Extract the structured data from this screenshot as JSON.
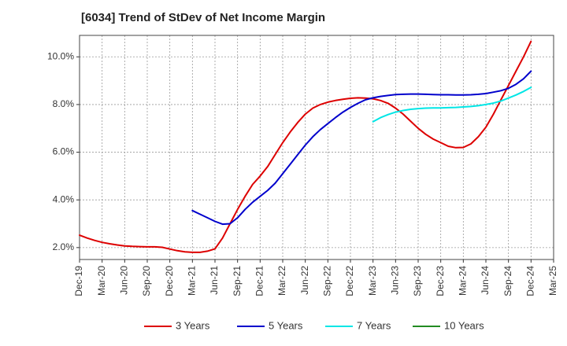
{
  "title": "[6034]  Trend of StDev of Net Income Margin",
  "chart_data": {
    "type": "line",
    "title": "[6034]  Trend of StDev of Net Income Margin",
    "xlabel": "",
    "ylabel": "",
    "x_ticks": [
      "Dec-19",
      "Mar-20",
      "Jun-20",
      "Sep-20",
      "Dec-20",
      "Mar-21",
      "Jun-21",
      "Sep-21",
      "Dec-21",
      "Mar-22",
      "Jun-22",
      "Sep-22",
      "Dec-22",
      "Mar-23",
      "Jun-23",
      "Sep-23",
      "Dec-23",
      "Mar-24",
      "Jun-24",
      "Sep-24",
      "Dec-24",
      "Mar-25"
    ],
    "y_ticks": [
      "2.0%",
      "4.0%",
      "6.0%",
      "8.0%",
      "10.0%"
    ],
    "ylim": [
      1.5,
      10.9
    ],
    "grid": true,
    "legend_position": "bottom",
    "series": [
      {
        "name": "3 Years",
        "color": "#dd0000",
        "x": [
          "Dec-19",
          "Jan-20",
          "Feb-20",
          "Mar-20",
          "Apr-20",
          "May-20",
          "Jun-20",
          "Jul-20",
          "Aug-20",
          "Sep-20",
          "Oct-20",
          "Nov-20",
          "Dec-20",
          "Jan-21",
          "Feb-21",
          "Mar-21",
          "Apr-21",
          "May-21",
          "Jun-21",
          "Jul-21",
          "Aug-21",
          "Sep-21",
          "Oct-21",
          "Nov-21",
          "Dec-21",
          "Jan-22",
          "Feb-22",
          "Mar-22",
          "Apr-22",
          "May-22",
          "Jun-22",
          "Jul-22",
          "Aug-22",
          "Sep-22",
          "Oct-22",
          "Nov-22",
          "Dec-22",
          "Jan-23",
          "Feb-23",
          "Mar-23",
          "Apr-23",
          "May-23",
          "Jun-23",
          "Jul-23",
          "Aug-23",
          "Sep-23",
          "Oct-23",
          "Nov-23",
          "Dec-23",
          "Jan-24",
          "Feb-24",
          "Mar-24",
          "Apr-24",
          "May-24",
          "Jun-24",
          "Jul-24",
          "Aug-24",
          "Sep-24",
          "Oct-24",
          "Nov-24",
          "Dec-24"
        ],
        "values": [
          2.52,
          2.4,
          2.3,
          2.22,
          2.16,
          2.11,
          2.07,
          2.05,
          2.04,
          2.03,
          2.03,
          2.01,
          1.94,
          1.87,
          1.82,
          1.8,
          1.8,
          1.85,
          1.95,
          2.4,
          3.0,
          3.6,
          4.15,
          4.65,
          5.0,
          5.4,
          5.9,
          6.4,
          6.85,
          7.25,
          7.6,
          7.85,
          8.0,
          8.1,
          8.17,
          8.22,
          8.26,
          8.28,
          8.27,
          8.24,
          8.17,
          8.05,
          7.85,
          7.6,
          7.3,
          7.0,
          6.75,
          6.55,
          6.4,
          6.25,
          6.19,
          6.2,
          6.35,
          6.65,
          7.05,
          7.6,
          8.2,
          8.8,
          9.4,
          10.0,
          10.65
        ]
      },
      {
        "name": "5 Years",
        "color": "#0000cc",
        "x": [
          "Dec-20",
          "Jan-21",
          "Feb-21",
          "Mar-21",
          "Apr-21",
          "May-21",
          "Jun-21",
          "Jul-21",
          "Aug-21",
          "Sep-21",
          "Oct-21",
          "Nov-21",
          "Dec-21",
          "Jan-22",
          "Feb-22",
          "Mar-22",
          "Apr-22",
          "May-22",
          "Jun-22",
          "Jul-22",
          "Aug-22",
          "Sep-22",
          "Oct-22",
          "Nov-22",
          "Dec-22",
          "Jan-23",
          "Feb-23",
          "Mar-23",
          "Apr-23",
          "May-23",
          "Jun-23",
          "Jul-23",
          "Aug-23",
          "Sep-23",
          "Oct-23",
          "Nov-23",
          "Dec-23",
          "Jan-24",
          "Feb-24",
          "Mar-24",
          "Apr-24",
          "May-24",
          "Jun-24",
          "Jul-24",
          "Aug-24",
          "Sep-24",
          "Oct-24",
          "Nov-24",
          "Dec-24"
        ],
        "values": [
          null,
          null,
          null,
          3.55,
          3.4,
          3.25,
          3.1,
          2.98,
          3.0,
          3.25,
          3.6,
          3.9,
          4.15,
          4.4,
          4.7,
          5.1,
          5.5,
          5.9,
          6.3,
          6.65,
          6.95,
          7.2,
          7.45,
          7.68,
          7.88,
          8.05,
          8.2,
          8.28,
          8.34,
          8.38,
          8.42,
          8.43,
          8.44,
          8.44,
          8.43,
          8.42,
          8.41,
          8.41,
          8.4,
          8.4,
          8.41,
          8.43,
          8.46,
          8.52,
          8.58,
          8.68,
          8.85,
          9.08,
          9.4
        ]
      },
      {
        "name": "7 Years",
        "color": "#00e6e6",
        "x": [
          "Dec-22",
          "Jan-23",
          "Feb-23",
          "Mar-23",
          "Apr-23",
          "May-23",
          "Jun-23",
          "Jul-23",
          "Aug-23",
          "Sep-23",
          "Oct-23",
          "Nov-23",
          "Dec-23",
          "Jan-24",
          "Feb-24",
          "Mar-24",
          "Apr-24",
          "May-24",
          "Jun-24",
          "Jul-24",
          "Aug-24",
          "Sep-24",
          "Oct-24",
          "Nov-24",
          "Dec-24"
        ],
        "values": [
          null,
          null,
          null,
          7.28,
          7.45,
          7.58,
          7.68,
          7.75,
          7.8,
          7.83,
          7.85,
          7.86,
          7.86,
          7.87,
          7.88,
          7.9,
          7.92,
          7.95,
          8.0,
          8.06,
          8.15,
          8.27,
          8.4,
          8.55,
          8.72
        ]
      },
      {
        "name": "10 Years",
        "color": "#228b22",
        "x": [],
        "values": []
      }
    ]
  }
}
